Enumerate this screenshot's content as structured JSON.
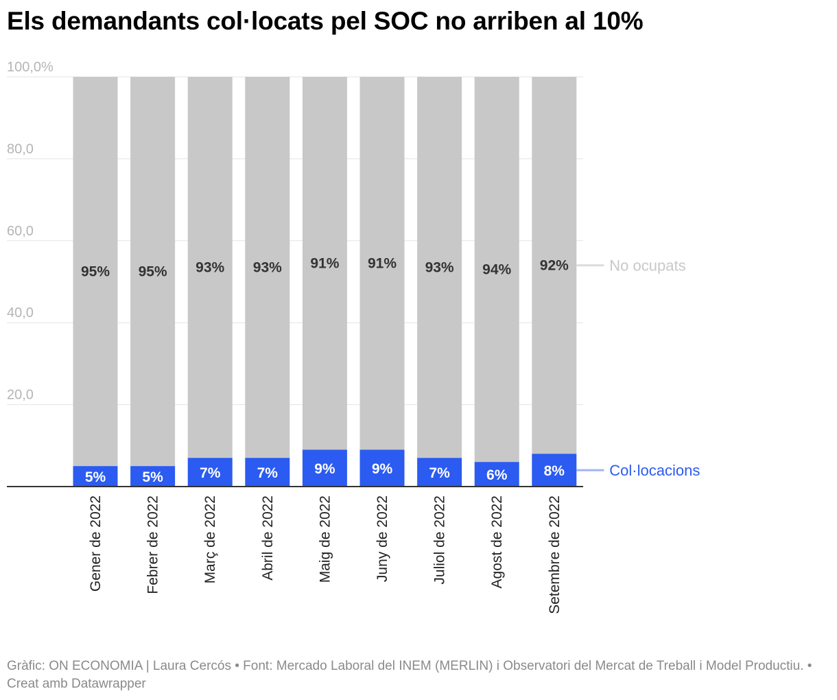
{
  "header": {
    "title": "Els demandants col·locats pel SOC no arriben al 10%"
  },
  "chart_data": {
    "type": "bar",
    "stacked": true,
    "title": "Els demandants col·locats pel SOC no arriben al 10%",
    "categories": [
      "Gener de 2022",
      "Febrer de 2022",
      "Març de 2022",
      "Abril de 2022",
      "Maig de 2022",
      "Juny de 2022",
      "Juliol de 2022",
      "Agost de 2022",
      "Setembre de 2022"
    ],
    "series": [
      {
        "name": "Col·locacions",
        "color": "#2b5bf0",
        "label_color": "#2b5bf0",
        "values": [
          5,
          5,
          7,
          7,
          9,
          9,
          7,
          6,
          8
        ],
        "labels": [
          "5%",
          "5%",
          "7%",
          "7%",
          "9%",
          "9%",
          "7%",
          "6%",
          "8%"
        ]
      },
      {
        "name": "No ocupats",
        "color": "#c8c8c8",
        "label_color": "#c8c8c8",
        "values": [
          95,
          95,
          93,
          93,
          91,
          91,
          93,
          94,
          92
        ],
        "labels": [
          "95%",
          "95%",
          "93%",
          "93%",
          "91%",
          "91%",
          "93%",
          "94%",
          "92%"
        ]
      }
    ],
    "yticks": [
      {
        "value": 100,
        "label": "100,0%"
      },
      {
        "value": 80,
        "label": "80,0"
      },
      {
        "value": 60,
        "label": "60,0"
      },
      {
        "value": 40,
        "label": "40,0"
      },
      {
        "value": 20,
        "label": "20,0"
      }
    ],
    "ylim": [
      0,
      100
    ],
    "grid": true,
    "legend": "right, labels next to last bar",
    "xlabel": "",
    "ylabel": ""
  },
  "footer": {
    "line1": "Gràfic: ON ECONOMIA | Laura Cercós • Font: Mercado Laboral del INEM (MERLIN) i Observatori del Mercat de Treball i Model Productiu. • Creat amb Datawrapper"
  }
}
